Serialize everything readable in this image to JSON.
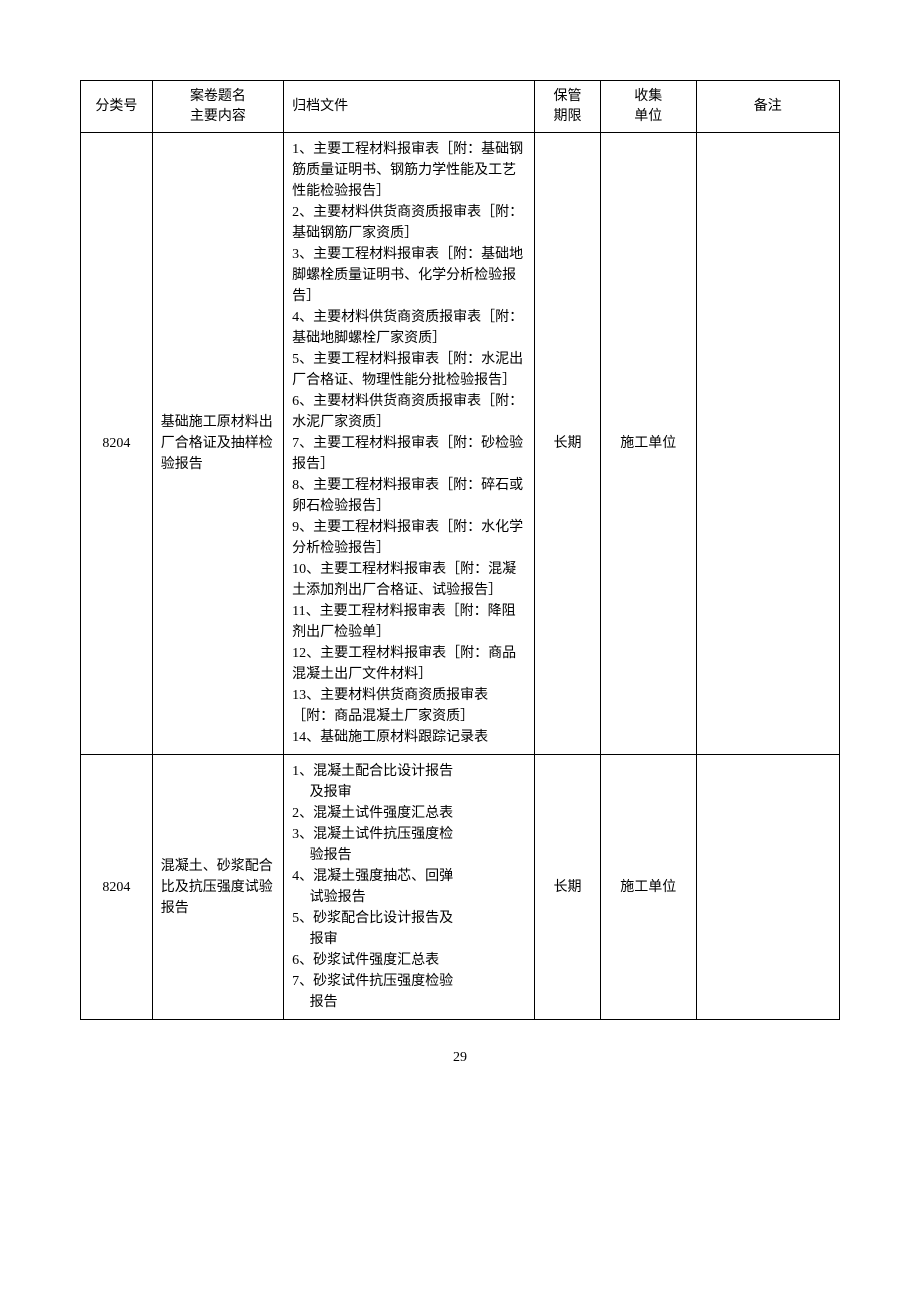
{
  "headers": {
    "col1": "分类号",
    "col2_line1": "案卷题名",
    "col2_line2": "主要内容",
    "col3": "归档文件",
    "col4_line1": "保管",
    "col4_line2": "期限",
    "col5_line1": "收集",
    "col5_line2": "单位",
    "col6": "备注"
  },
  "rows": [
    {
      "id": "8204",
      "title": "基础施工原材料出厂合格证及抽样检验报告",
      "file": "1、主要工程材料报审表［附：基础钢筋质量证明书、钢筋力学性能及工艺性能检验报告］\n2、主要材料供货商资质报审表［附：基础钢筋厂家资质］\n3、主要工程材料报审表［附：基础地脚螺栓质量证明书、化学分析检验报告］\n4、主要材料供货商资质报审表［附：基础地脚螺栓厂家资质］\n5、主要工程材料报审表［附：水泥出厂合格证、物理性能分批检验报告］\n6、主要材料供货商资质报审表［附：水泥厂家资质］\n7、主要工程材料报审表［附：砂检验报告］\n8、主要工程材料报审表［附：碎石或卵石检验报告］\n9、主要工程材料报审表［附：水化学分析检验报告］\n10、主要工程材料报审表［附：混凝土添加剂出厂合格证、试验报告］\n11、主要工程材料报审表［附：降阻剂出厂检验单］\n12、主要工程材料报审表［附：商品混凝土出厂文件材料］\n13、主要材料供货商资质报审表［附：商品混凝土厂家资质］\n14、基础施工原材料跟踪记录表",
      "period": "长期",
      "unit": "施工单位",
      "note": ""
    },
    {
      "id": "8204",
      "title": "混凝土、砂浆配合比及抗压强度试验报告",
      "file": "1、混凝土配合比设计报告\n　 及报审\n2、混凝土试件强度汇总表\n3、混凝土试件抗压强度检\n　 验报告\n4、混凝土强度抽芯、回弹\n　 试验报告\n5、砂浆配合比设计报告及\n　 报审\n6、砂浆试件强度汇总表\n7、砂浆试件抗压强度检验\n　 报告",
      "period": "长期",
      "unit": "施工单位",
      "note": ""
    }
  ],
  "pageNumber": "29"
}
